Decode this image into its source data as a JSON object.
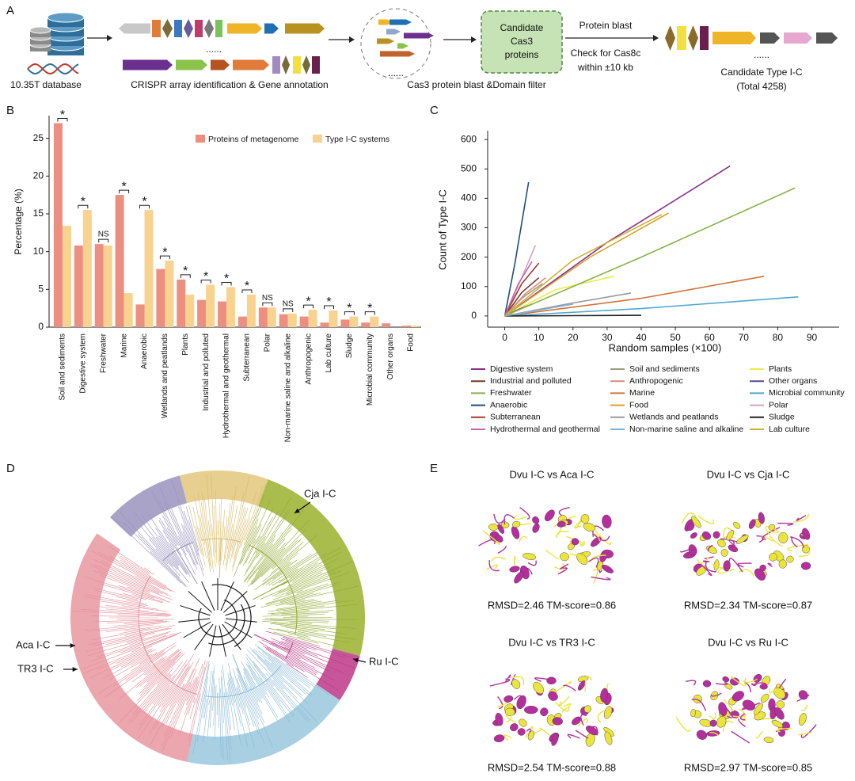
{
  "panel_labels": [
    "A",
    "B",
    "C",
    "D",
    "E"
  ],
  "panel_a": {
    "database": "10.35T database",
    "annotation": "CRISPR array identification & Gene annotation",
    "filter": "Cas3 protein blast &Domain filter",
    "candidate_box": [
      "Candidate",
      "Cas3",
      "proteins"
    ],
    "blast": "Protein blast",
    "check": [
      "Check for Cas8c",
      "within ±10 kb"
    ],
    "dots": "......",
    "result": [
      "Candidate Type I-C",
      "(Total 4258)"
    ]
  },
  "chart_data": [
    {
      "type": "bar",
      "y_label": "Percentage (%)",
      "categories": [
        "Soil and sediments",
        "Digestive system",
        "Freshwater",
        "Marine",
        "Anaerobic",
        "Wetlands and peatlands",
        "Plants",
        "Industrial and polluted",
        "Hydrothermal and geothermal",
        "Subterranean",
        "Polar",
        "Non-marine saline and alkaline",
        "Anthropogenic",
        "Lab culture",
        "Sludge",
        "Microbial community",
        "Other organs",
        "Food"
      ],
      "series": [
        {
          "name": "Proteins of metagenome",
          "color": "#ec8e80",
          "values": [
            27,
            10.8,
            11,
            17.5,
            3,
            7.7,
            6.3,
            3.6,
            3.4,
            1.4,
            2.6,
            1.7,
            1.4,
            0.6,
            1.0,
            0.6,
            0.5,
            0.2
          ]
        },
        {
          "name": "Type I-C systems",
          "color": "#f8d28f",
          "values": [
            13.4,
            15.5,
            10.8,
            4.5,
            15.5,
            8.8,
            4.3,
            5.6,
            5.3,
            4.3,
            2.6,
            1.8,
            2.3,
            2.2,
            1.4,
            1.4,
            0,
            0.2
          ]
        }
      ],
      "significance": [
        "*",
        "*",
        "NS",
        "*",
        "*",
        "*",
        "*",
        "*",
        "*",
        "*",
        "NS",
        "NS",
        "*",
        "*",
        "*",
        "*",
        null,
        null
      ],
      "ylim": [
        0,
        28
      ],
      "yticks": [
        0,
        5,
        10,
        15,
        20,
        25
      ],
      "legend": "top-right"
    },
    {
      "type": "line",
      "x_label": "Random samples (×100)",
      "y_label": "Count of Type I-C",
      "xlim": [
        -5,
        98
      ],
      "xticks": [
        0,
        10,
        20,
        30,
        40,
        50,
        60,
        70,
        80,
        90
      ],
      "ylim": [
        -38,
        630
      ],
      "yticks": [
        0,
        100,
        200,
        300,
        400,
        500,
        600
      ],
      "legend": "bottom",
      "series": [
        {
          "name": "Digestive system",
          "color": "#8b2f8f",
          "x": [
            0,
            30,
            66
          ],
          "values": [
            0,
            250,
            510
          ]
        },
        {
          "name": "Soil and sediments",
          "color": "#a09a7c",
          "x": [
            0,
            5,
            11
          ],
          "values": [
            0,
            60,
            110
          ]
        },
        {
          "name": "Plants",
          "color": "#f2e84a",
          "x": [
            0,
            15,
            32
          ],
          "values": [
            0,
            90,
            135
          ]
        },
        {
          "name": "Industrial and polluted",
          "color": "#7a3b2e",
          "x": [
            0,
            5,
            10
          ],
          "values": [
            0,
            80,
            130
          ]
        },
        {
          "name": "Anthropogenic",
          "color": "#d98c7a",
          "x": [
            0,
            6,
            12
          ],
          "values": [
            0,
            75,
            130
          ]
        },
        {
          "name": "Other organs",
          "color": "#5b4a8a",
          "x": [
            0,
            4,
            8
          ],
          "values": [
            0,
            22,
            40
          ]
        },
        {
          "name": "Freshwater",
          "color": "#86b34a",
          "x": [
            0,
            40,
            85
          ],
          "values": [
            0,
            200,
            435
          ]
        },
        {
          "name": "Marine",
          "color": "#d0733a",
          "x": [
            0,
            40,
            76
          ],
          "values": [
            0,
            60,
            135
          ]
        },
        {
          "name": "Microbial community",
          "color": "#4fa8cf",
          "x": [
            0,
            40,
            86
          ],
          "values": [
            0,
            25,
            65
          ]
        },
        {
          "name": "Anaerobic",
          "color": "#1e4f7e",
          "x": [
            0,
            3,
            7
          ],
          "values": [
            0,
            180,
            455
          ]
        },
        {
          "name": "Food",
          "color": "#d6a32e",
          "x": [
            0,
            25,
            48
          ],
          "values": [
            0,
            200,
            350
          ]
        },
        {
          "name": "Polar",
          "color": "#d7a0c6",
          "x": [
            0,
            5,
            9
          ],
          "values": [
            0,
            130,
            240
          ]
        },
        {
          "name": "Subterranean",
          "color": "#a83a2a",
          "x": [
            0,
            5,
            10
          ],
          "values": [
            0,
            110,
            180
          ]
        },
        {
          "name": "Wetlands and peatlands",
          "color": "#9a9a9a",
          "x": [
            0,
            18,
            37
          ],
          "values": [
            0,
            40,
            78
          ]
        },
        {
          "name": "Sludge",
          "color": "#222222",
          "x": [
            0,
            20,
            40
          ],
          "values": [
            0,
            1,
            2
          ]
        },
        {
          "name": "Hydrothermal and geothermal",
          "color": "#c06aa8",
          "x": [
            0,
            4,
            8
          ],
          "values": [
            0,
            110,
            185
          ]
        },
        {
          "name": "Non-marine saline and alkaline",
          "color": "#7fb0d8",
          "x": [
            0,
            10,
            20
          ],
          "values": [
            0,
            20,
            40
          ]
        },
        {
          "name": "Lab culture",
          "color": "#c9b23a",
          "x": [
            0,
            20,
            46
          ],
          "values": [
            0,
            190,
            345
          ]
        }
      ]
    }
  ],
  "panel_d": {
    "labels": [
      "Cja I-C",
      "Ru I-C",
      "Aca I-C",
      "TR3 I-C"
    ]
  },
  "panel_e": {
    "titles": [
      "Dvu I-C vs Aca I-C",
      "Dvu I-C vs Cja I-C",
      "Dvu I-C vs TR3 I-C",
      "Dvu I-C vs Ru I-C"
    ],
    "scores": [
      "RMSD=2.46 TM-score=0.86",
      "RMSD=2.34 TM-score=0.87",
      "RMSD=2.54 TM-score=0.88",
      "RMSD=2.97 TM-score=0.85"
    ]
  }
}
